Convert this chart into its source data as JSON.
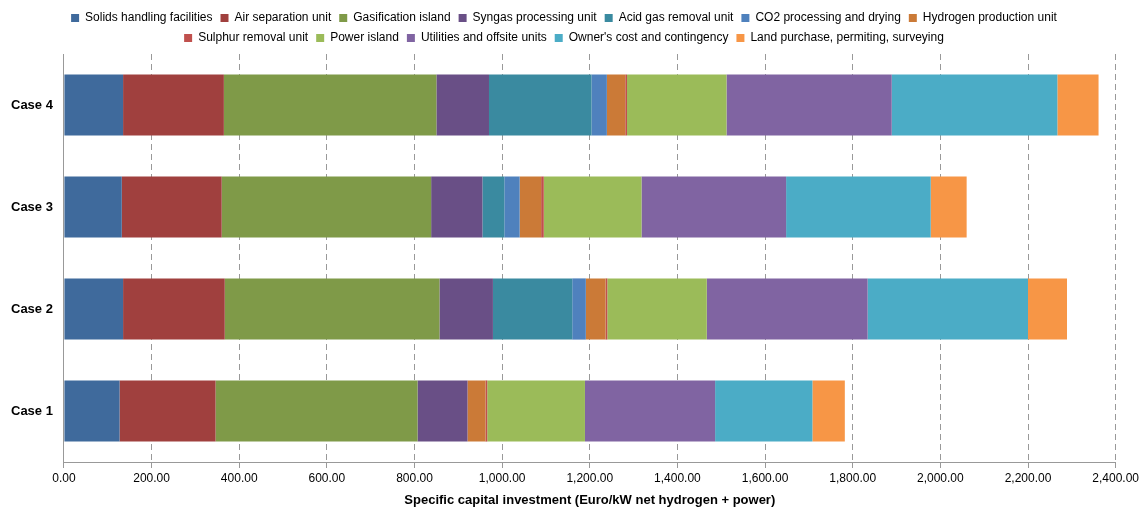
{
  "chart_data": {
    "type": "bar",
    "orientation": "horizontal",
    "stacked": true,
    "xlabel": "Specific capital investment (Euro/kW net hydrogen + power)",
    "categories": [
      "Case 4",
      "Case 3",
      "Case 2",
      "Case 1"
    ],
    "series": [
      {
        "name": "Solids handling facilities",
        "color": "#3f6a9c",
        "values": [
          135,
          132,
          135,
          127
        ]
      },
      {
        "name": "Air separation unit",
        "color": "#a0403e",
        "values": [
          230,
          228,
          232,
          219
        ]
      },
      {
        "name": "Gasification island",
        "color": "#7f9a48",
        "values": [
          485,
          478,
          490,
          461
        ]
      },
      {
        "name": "Syngas processing unit",
        "color": "#694f86",
        "values": [
          120,
          117,
          122,
          114
        ]
      },
      {
        "name": "Acid gas removal unit",
        "color": "#3a8aa0",
        "values": [
          234,
          50,
          181,
          0
        ]
      },
      {
        "name": "CO2 processing and drying",
        "color": "#4f81bd",
        "values": [
          35,
          35,
          31,
          0
        ]
      },
      {
        "name": "Hydrogen production unit",
        "color": "#cb7a37",
        "values": [
          42,
          49,
          45,
          41
        ]
      },
      {
        "name": "Sulphur removal unit",
        "color": "#c0504d",
        "values": [
          4,
          6,
          4,
          4
        ]
      },
      {
        "name": "Power island",
        "color": "#9bbb59",
        "values": [
          227,
          223,
          227,
          223
        ]
      },
      {
        "name": "Utilities and offsite units",
        "color": "#8064a2",
        "values": [
          377,
          330,
          367,
          297
        ]
      },
      {
        "name": "Owner's cost and contingency",
        "color": "#4bacc6",
        "values": [
          378,
          330,
          366,
          222
        ]
      },
      {
        "name": "Land purchase, permiting, surveying",
        "color": "#f79646",
        "values": [
          94,
          82,
          89,
          74
        ]
      }
    ],
    "xlim": [
      0,
      2400
    ],
    "xticks": [
      {
        "value": 0,
        "label": "0.00"
      },
      {
        "value": 200,
        "label": "200.00"
      },
      {
        "value": 400,
        "label": "400.00"
      },
      {
        "value": 600,
        "label": "600.00"
      },
      {
        "value": 800,
        "label": "800.00"
      },
      {
        "value": 1000,
        "label": "1,000.00"
      },
      {
        "value": 1200,
        "label": "1,200.00"
      },
      {
        "value": 1400,
        "label": "1,400.00"
      },
      {
        "value": 1600,
        "label": "1,600.00"
      },
      {
        "value": 1800,
        "label": "1,800.00"
      },
      {
        "value": 2000,
        "label": "2,000.00"
      },
      {
        "value": 2200,
        "label": "2,200.00"
      },
      {
        "value": 2400,
        "label": "2,400.00"
      }
    ],
    "grid": "x",
    "legend": "top"
  }
}
